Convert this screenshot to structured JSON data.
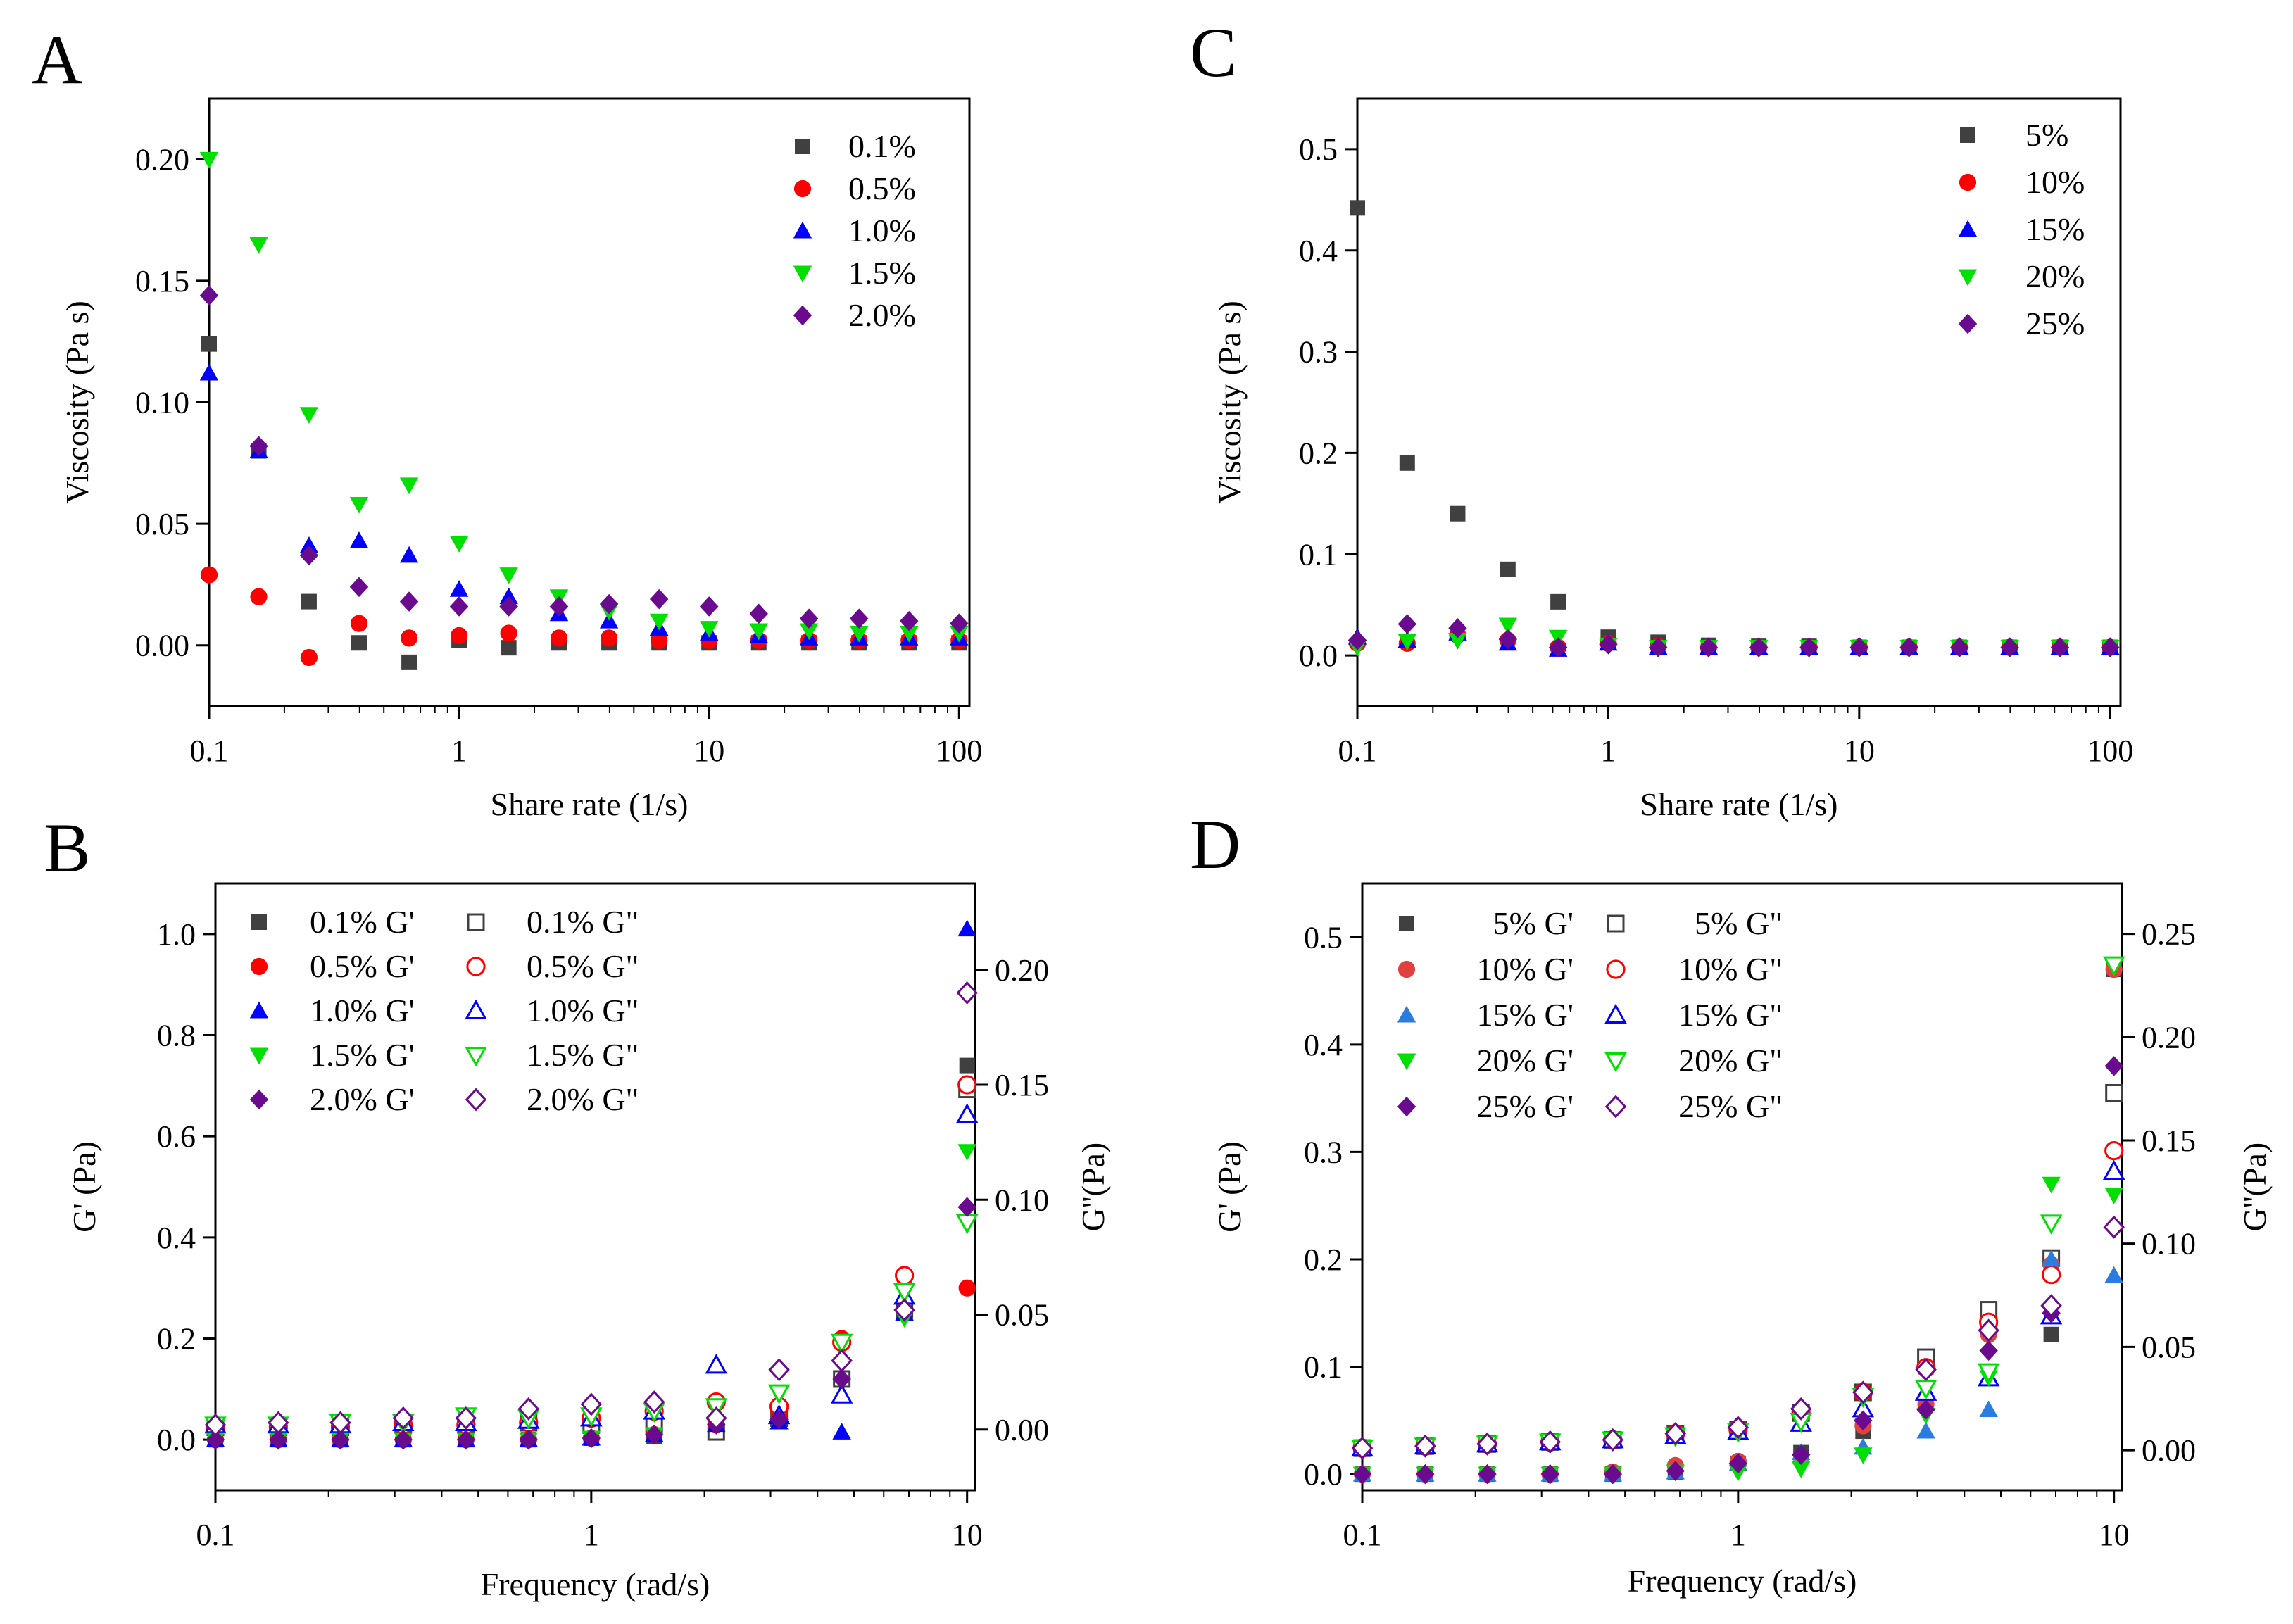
{
  "chart_data": [
    {
      "panel_label": "A",
      "type": "scatter",
      "x_scale": "log",
      "xlabel": "Share rate (1/s)",
      "ylabel": "Viscosity (Pa s)",
      "xlim": [
        0.1,
        110
      ],
      "ylim": [
        -0.025,
        0.225
      ],
      "x_ticks": [
        0.1,
        1,
        10,
        100
      ],
      "x_tick_labels": [
        "0.1",
        "1",
        "10",
        "100"
      ],
      "y_ticks": [
        0.0,
        0.05,
        0.1,
        0.15,
        0.2
      ],
      "y_tick_labels": [
        "0.00",
        "0.05",
        "0.10",
        "0.15",
        "0.20"
      ],
      "legend_position": "top-right",
      "x": [
        0.1,
        0.158,
        0.251,
        0.398,
        0.631,
        1,
        1.58,
        2.51,
        3.98,
        6.31,
        10,
        15.8,
        25.1,
        39.8,
        63.1,
        100
      ],
      "series": [
        {
          "name": "0.1%",
          "marker": "square",
          "color": "#404040",
          "filled": true,
          "values": [
            0.124,
            0.08,
            0.018,
            0.001,
            -0.007,
            0.002,
            -0.001,
            0.001,
            0.001,
            0.001,
            0.001,
            0.001,
            0.001,
            0.001,
            0.001,
            0.001
          ]
        },
        {
          "name": "0.5%",
          "marker": "circle",
          "color": "#ff0000",
          "filled": true,
          "values": [
            0.029,
            0.02,
            -0.005,
            0.009,
            0.003,
            0.004,
            0.005,
            0.003,
            0.003,
            0.002,
            0.002,
            0.002,
            0.002,
            0.002,
            0.002,
            0.002
          ]
        },
        {
          "name": "1.0%",
          "marker": "triangle-up",
          "color": "#0000ff",
          "filled": true,
          "values": [
            0.112,
            0.08,
            0.041,
            0.043,
            0.037,
            0.023,
            0.02,
            0.013,
            0.01,
            0.007,
            0.005,
            0.004,
            0.003,
            0.003,
            0.003,
            0.003
          ]
        },
        {
          "name": "1.5%",
          "marker": "triangle-down",
          "color": "#00e000",
          "filled": true,
          "values": [
            0.2,
            0.165,
            0.095,
            0.058,
            0.066,
            0.042,
            0.029,
            0.02,
            0.014,
            0.01,
            0.007,
            0.006,
            0.006,
            0.005,
            0.005,
            0.005
          ]
        },
        {
          "name": "2.0%",
          "marker": "diamond",
          "color": "#6a0b8f",
          "filled": true,
          "values": [
            0.144,
            0.082,
            0.037,
            0.024,
            0.018,
            0.016,
            0.016,
            0.016,
            0.017,
            0.019,
            0.016,
            0.013,
            0.011,
            0.011,
            0.01,
            0.009
          ]
        }
      ]
    },
    {
      "panel_label": "C",
      "type": "scatter",
      "x_scale": "log",
      "xlabel": "Share rate (1/s)",
      "ylabel": "Viscosity (Pa s)",
      "xlim": [
        0.1,
        110
      ],
      "ylim": [
        -0.05,
        0.55
      ],
      "x_ticks": [
        0.1,
        1,
        10,
        100
      ],
      "x_tick_labels": [
        "0.1",
        "1",
        "10",
        "100"
      ],
      "y_ticks": [
        0.0,
        0.1,
        0.2,
        0.3,
        0.4,
        0.5
      ],
      "y_tick_labels": [
        "0.0",
        "0.1",
        "0.2",
        "0.3",
        "0.4",
        "0.5"
      ],
      "legend_position": "top-right",
      "x": [
        0.1,
        0.158,
        0.251,
        0.398,
        0.631,
        1,
        1.58,
        2.51,
        3.98,
        6.31,
        10,
        15.8,
        25.1,
        39.8,
        63.1,
        100
      ],
      "series": [
        {
          "name": "5%",
          "marker": "square",
          "color": "#404040",
          "filled": true,
          "values": [
            0.442,
            0.19,
            0.14,
            0.085,
            0.053,
            0.018,
            0.013,
            0.01,
            0.009,
            0.009,
            0.008,
            0.008,
            0.008,
            0.008,
            0.008,
            0.008
          ]
        },
        {
          "name": "10%",
          "marker": "circle",
          "color": "#ff0000",
          "filled": true,
          "values": [
            0.012,
            0.012,
            0.02,
            0.015,
            0.008,
            0.012,
            0.009,
            0.008,
            0.008,
            0.008,
            0.008,
            0.008,
            0.008,
            0.008,
            0.008,
            0.008
          ]
        },
        {
          "name": "15%",
          "marker": "triangle-up",
          "color": "#0000ff",
          "filled": true,
          "values": [
            0.018,
            0.015,
            0.022,
            0.012,
            0.006,
            0.012,
            0.008,
            0.008,
            0.008,
            0.008,
            0.008,
            0.008,
            0.008,
            0.008,
            0.008,
            0.008
          ]
        },
        {
          "name": "20%",
          "marker": "triangle-down",
          "color": "#00e000",
          "filled": true,
          "values": [
            0.008,
            0.014,
            0.015,
            0.03,
            0.018,
            0.01,
            0.008,
            0.008,
            0.008,
            0.008,
            0.008,
            0.008,
            0.008,
            0.008,
            0.008,
            0.008
          ]
        },
        {
          "name": "25%",
          "marker": "diamond",
          "color": "#6a0b8f",
          "filled": true,
          "values": [
            0.015,
            0.031,
            0.027,
            0.016,
            0.008,
            0.011,
            0.008,
            0.008,
            0.008,
            0.008,
            0.008,
            0.008,
            0.008,
            0.008,
            0.008,
            0.008
          ]
        }
      ]
    },
    {
      "panel_label": "B",
      "type": "scatter",
      "x_scale": "log",
      "xlabel": "Frequency (rad/s)",
      "ylabel": "G' (Pa)",
      "y2label": "G''(Pa)",
      "xlim": [
        0.1,
        10.5
      ],
      "ylim": [
        -0.1,
        1.1
      ],
      "y2lim": [
        -0.0264,
        0.2376
      ],
      "x_ticks": [
        0.1,
        1,
        10
      ],
      "x_tick_labels": [
        "0.1",
        "1",
        "10"
      ],
      "y_ticks": [
        0.0,
        0.2,
        0.4,
        0.6,
        0.8,
        1.0
      ],
      "y_tick_labels": [
        "0.0",
        "0.2",
        "0.4",
        "0.6",
        "0.8",
        "1.0"
      ],
      "y2_ticks": [
        0.0,
        0.05,
        0.1,
        0.15,
        0.2
      ],
      "y2_tick_labels": [
        "0.00",
        "0.05",
        "0.10",
        "0.15",
        "0.20"
      ],
      "legend_position": "top-left",
      "legend_columns": 2,
      "x": [
        0.1,
        0.147,
        0.215,
        0.316,
        0.464,
        0.681,
        1,
        1.47,
        2.15,
        3.16,
        4.64,
        6.81,
        10
      ],
      "series": [
        {
          "name": "0.1% G'",
          "axis": "left",
          "marker": "square",
          "color": "#404040",
          "filled": true,
          "values": [
            0,
            0,
            0,
            0,
            0,
            0,
            0.003,
            0.006,
            0.02,
            0.04,
            0.12,
            0.26,
            0.74
          ]
        },
        {
          "name": "0.1% G\"",
          "axis": "right",
          "marker": "square",
          "color": "#404040",
          "filled": false,
          "values": [
            0.001,
            0.001,
            0.001,
            0.002,
            0.002,
            0.003,
            0.002,
            0.002,
            -0.001,
            0.005,
            0.022,
            0.052,
            0.148
          ]
        },
        {
          "name": "0.5% G'",
          "axis": "left",
          "marker": "circle",
          "color": "#ff0000",
          "filled": true,
          "values": [
            0,
            0,
            0,
            0,
            0,
            0,
            0.003,
            0.01,
            0.03,
            0.05,
            0.2,
            0.32,
            0.3
          ]
        },
        {
          "name": "0.5% G\"",
          "axis": "right",
          "marker": "circle",
          "color": "#ff0000",
          "filled": false,
          "values": [
            0.001,
            0.001,
            0.001,
            0.002,
            0.002,
            0.003,
            0.005,
            0.008,
            0.012,
            0.01,
            0.038,
            0.067,
            0.15
          ]
        },
        {
          "name": "1.0% G'",
          "axis": "left",
          "marker": "triangle-up",
          "color": "#0000ff",
          "filled": true,
          "values": [
            0,
            0,
            0,
            0,
            0,
            0,
            0.003,
            0.01,
            0.03,
            0.035,
            0.015,
            0.25,
            1.01
          ]
        },
        {
          "name": "1.0% G\"",
          "axis": "right",
          "marker": "triangle-up",
          "color": "#0000ff",
          "filled": false,
          "values": [
            0.002,
            0.002,
            0.002,
            0.003,
            0.003,
            0.004,
            0.005,
            0.008,
            0.028,
            0.006,
            0.015,
            0.058,
            0.137
          ]
        },
        {
          "name": "1.5% G'",
          "axis": "left",
          "marker": "triangle-down",
          "color": "#00e000",
          "filled": true,
          "values": [
            0,
            0,
            0,
            0,
            0,
            0,
            0.003,
            0.01,
            0.03,
            0.09,
            0.15,
            0.24,
            0.57
          ]
        },
        {
          "name": "1.5% G\"",
          "axis": "right",
          "marker": "triangle-down",
          "color": "#00e000",
          "filled": false,
          "values": [
            0.002,
            0.002,
            0.003,
            0.003,
            0.006,
            0.005,
            0.006,
            0.008,
            0.01,
            0.016,
            0.038,
            0.06,
            0.09
          ]
        },
        {
          "name": "2.0% G'",
          "axis": "left",
          "marker": "diamond",
          "color": "#6a0b8f",
          "filled": true,
          "values": [
            0,
            0,
            0,
            0,
            0,
            0,
            0.003,
            0.01,
            0.03,
            0.04,
            0.12,
            0.26,
            0.46
          ]
        },
        {
          "name": "2.0% G\"",
          "axis": "right",
          "marker": "diamond",
          "color": "#6a0b8f",
          "filled": false,
          "values": [
            0.002,
            0.003,
            0.003,
            0.005,
            0.005,
            0.009,
            0.011,
            0.012,
            0.005,
            0.026,
            0.03,
            0.052,
            0.19
          ]
        }
      ]
    },
    {
      "panel_label": "D",
      "type": "scatter",
      "x_scale": "log",
      "xlabel": "Frequency (rad/s)",
      "ylabel": "G' (Pa)",
      "y2label": "G''(Pa)",
      "xlim": [
        0.1,
        10.5
      ],
      "ylim": [
        -0.015,
        0.55
      ],
      "y2lim": [
        -0.0194,
        0.2744
      ],
      "x_ticks": [
        0.1,
        1,
        10
      ],
      "x_tick_labels": [
        "0.1",
        "1",
        "10"
      ],
      "y_ticks": [
        0.0,
        0.1,
        0.2,
        0.3,
        0.4,
        0.5
      ],
      "y_tick_labels": [
        "0.0",
        "0.1",
        "0.2",
        "0.3",
        "0.4",
        "0.5"
      ],
      "y2_ticks": [
        0.0,
        0.05,
        0.1,
        0.15,
        0.2,
        0.25
      ],
      "y2_tick_labels": [
        "0.00",
        "0.05",
        "0.10",
        "0.15",
        "0.20",
        "0.25"
      ],
      "legend_position": "top-left",
      "legend_columns": 2,
      "x": [
        0.1,
        0.147,
        0.215,
        0.316,
        0.464,
        0.681,
        1,
        1.47,
        2.15,
        3.16,
        4.64,
        6.81,
        10
      ],
      "series": [
        {
          "name": "5% G'",
          "axis": "left",
          "marker": "square",
          "color": "#404040",
          "filled": true,
          "values": [
            0,
            0,
            0,
            0,
            0,
            0.002,
            0.01,
            0.02,
            0.04,
            0.1,
            0.15,
            0.13,
            0.47
          ]
        },
        {
          "name": "5% G\"",
          "axis": "right",
          "marker": "square",
          "color": "#404040",
          "filled": false,
          "values": [
            0.001,
            0.002,
            0.003,
            0.004,
            0.005,
            0.008,
            0.01,
            0.018,
            0.028,
            0.045,
            0.068,
            0.093,
            0.173
          ]
        },
        {
          "name": "10% G'",
          "axis": "left",
          "marker": "circle",
          "color": "#e04040",
          "filled": true,
          "values": [
            0,
            0,
            0,
            0,
            0.002,
            0.008,
            0.012,
            0.055,
            0.045,
            0.065,
            0.13,
            0.195,
            0.47
          ]
        },
        {
          "name": "10% G\"",
          "axis": "right",
          "marker": "circle",
          "color": "#ff0000",
          "filled": false,
          "values": [
            0.001,
            0.002,
            0.003,
            0.004,
            0.005,
            0.008,
            0.01,
            0.018,
            0.028,
            0.04,
            0.062,
            0.085,
            0.145
          ]
        },
        {
          "name": "15% G'",
          "axis": "left",
          "marker": "triangle-up",
          "color": "#2a7de0",
          "filled": true,
          "values": [
            0,
            0,
            0,
            0,
            0,
            0.002,
            0.01,
            0.02,
            0.025,
            0.04,
            0.06,
            0.2,
            0.185
          ]
        },
        {
          "name": "15% G\"",
          "axis": "right",
          "marker": "triangle-up",
          "color": "#0000ff",
          "filled": false,
          "values": [
            0.001,
            0.002,
            0.003,
            0.004,
            0.005,
            0.007,
            0.009,
            0.013,
            0.02,
            0.028,
            0.035,
            0.065,
            0.135
          ]
        },
        {
          "name": "20% G'",
          "axis": "left",
          "marker": "triangle-down",
          "color": "#00e000",
          "filled": true,
          "values": [
            0,
            0,
            0,
            0,
            0,
            0.002,
            0.002,
            0.005,
            0.018,
            0.055,
            0.09,
            0.27,
            0.26
          ]
        },
        {
          "name": "20% G\"",
          "axis": "right",
          "marker": "triangle-down",
          "color": "#00e000",
          "filled": false,
          "values": [
            0.001,
            0.002,
            0.003,
            0.004,
            0.005,
            0.007,
            0.009,
            0.014,
            0.026,
            0.03,
            0.038,
            0.11,
            0.235
          ]
        },
        {
          "name": "25% G'",
          "axis": "left",
          "marker": "diamond",
          "color": "#6a0b8f",
          "filled": true,
          "values": [
            0,
            0,
            0,
            0,
            0,
            0.003,
            0.01,
            0.018,
            0.05,
            0.06,
            0.115,
            0.15,
            0.38
          ]
        },
        {
          "name": "25% G\"",
          "axis": "right",
          "marker": "diamond",
          "color": "#6a0b8f",
          "filled": false,
          "values": [
            0.001,
            0.002,
            0.003,
            0.004,
            0.005,
            0.008,
            0.011,
            0.02,
            0.028,
            0.039,
            0.058,
            0.07,
            0.108
          ]
        }
      ]
    }
  ]
}
